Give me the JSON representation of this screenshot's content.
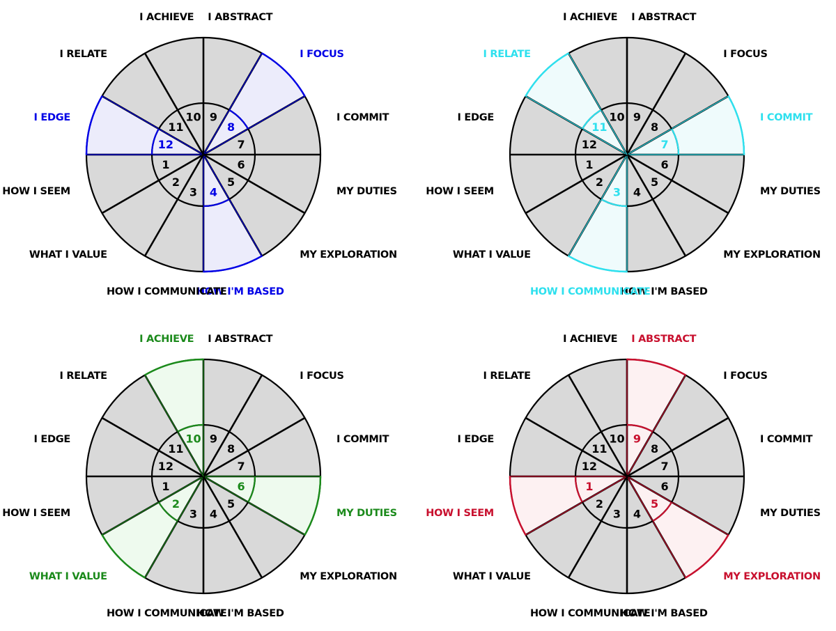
{
  "colors": {
    "sector_fill": "#d9d9d9",
    "stroke": "#000000",
    "text": "#000000",
    "inner_fill": "#ffffff"
  },
  "labels": [
    "I ABSTRACT",
    "I FOCUS",
    "I COMMIT",
    "MY DUTIES",
    "MY EXPLORATION",
    "HOW I'M BASED",
    "HOW I COMMUNICATE",
    "WHAT I VALUE",
    "HOW I SEEM",
    "I EDGE",
    "I RELATE",
    "I ACHIEVE"
  ],
  "numbers": [
    "9",
    "8",
    "7",
    "6",
    "5",
    "4",
    "3",
    "2",
    "1",
    "12",
    "11",
    "10"
  ],
  "wheels": [
    {
      "highlight_color": "#0000e6",
      "highlight_fill": "#ececfb",
      "highlighted": [
        1,
        5,
        9
      ]
    },
    {
      "highlight_color": "#2ee0ee",
      "highlight_fill": "#effbfc",
      "highlighted": [
        2,
        6,
        10
      ]
    },
    {
      "highlight_color": "#1b8a1b",
      "highlight_fill": "#eefaee",
      "highlighted": [
        3,
        7,
        11
      ]
    },
    {
      "highlight_color": "#c8102e",
      "highlight_fill": "#fdf1f2",
      "highlighted": [
        0,
        4,
        8
      ]
    }
  ]
}
